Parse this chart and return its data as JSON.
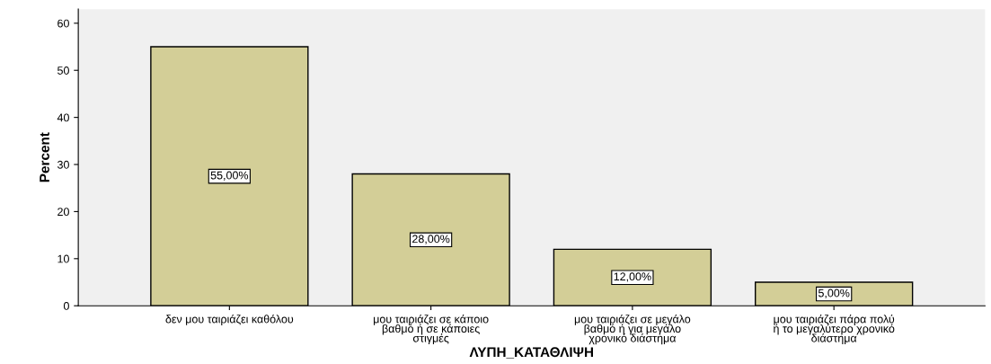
{
  "chart_data": {
    "type": "bar",
    "xlabel": "ΛΥΠΗ_ΚΑΤΑΘΛΙΨΗ",
    "ylabel": "Percent",
    "categories": [
      "δεν μου ταιριάζει καθόλου",
      "μου ταιριάζει σε κάποιο\nβαθμό ή σε κάποιες\nστιγμές",
      "μου ταιριάζει σε μεγάλο\nβαθμό ή για μεγάλο\nχρονικό διάστημα",
      "μου ταιριάζει πάρα πολύ\nή το μεγαλύτερο χρονικό\nδιάστημα"
    ],
    "values": [
      55,
      28,
      12,
      5
    ],
    "value_labels": [
      "55,00%",
      "28,00%",
      "12,00%",
      "5,00%"
    ],
    "color": "#d3ce97",
    "ylim": [
      0,
      63
    ],
    "yticks": [
      0,
      10,
      20,
      30,
      40,
      50,
      60
    ],
    "grid": false,
    "legend": false
  }
}
